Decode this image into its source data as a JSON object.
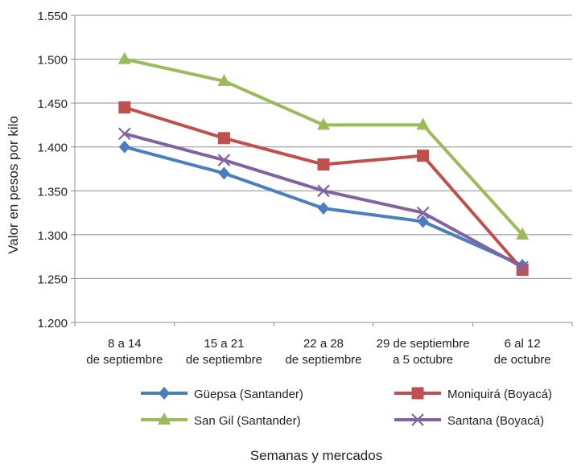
{
  "chart_data": {
    "type": "line",
    "xlabel": "Semanas y mercados",
    "ylabel": "Valor en pesos por kilo",
    "ylim": [
      1200,
      1550
    ],
    "yticks": [
      1200,
      1250,
      1300,
      1350,
      1400,
      1450,
      1500,
      1550
    ],
    "ytick_labels": [
      "1.200",
      "1.250",
      "1.300",
      "1.350",
      "1.400",
      "1.450",
      "1.500",
      "1.550"
    ],
    "grid": "horizontal",
    "legend_position": "bottom",
    "categories": [
      [
        "8 a 14",
        "de septiembre"
      ],
      [
        "15 a 21",
        "de septiembre"
      ],
      [
        "22 a 28",
        "de septiembre"
      ],
      [
        "29 de septiembre",
        "a 5 octubre"
      ],
      [
        "6 al 12",
        "de octubre"
      ]
    ],
    "series": [
      {
        "name": "Güepsa (Santander)",
        "values": [
          1400,
          1370,
          1330,
          1315,
          1265
        ],
        "color": "#4a7ebf",
        "marker": "diamond"
      },
      {
        "name": "Moniquirá (Boyacá)",
        "values": [
          1445,
          1410,
          1380,
          1390,
          1260
        ],
        "color": "#c0504d",
        "marker": "square"
      },
      {
        "name": "San Gil (Santander)",
        "values": [
          1500,
          1475,
          1425,
          1425,
          1300
        ],
        "color": "#9bbb59",
        "marker": "triangle"
      },
      {
        "name": "Santana (Boyacá)",
        "values": [
          1415,
          1385,
          1350,
          1325,
          1263
        ],
        "color": "#8064a2",
        "marker": "x"
      }
    ]
  }
}
